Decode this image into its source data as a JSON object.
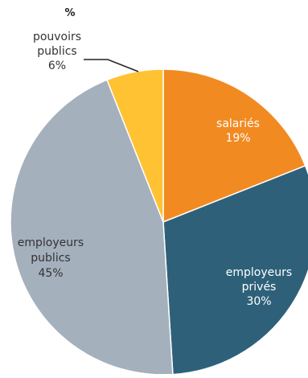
{
  "chart_data": {
    "type": "pie",
    "unit_label": "%",
    "slices": [
      {
        "label": "salariés",
        "value": 19,
        "value_label": "19%",
        "color": "#F28A22"
      },
      {
        "label": "employeurs privés",
        "value": 30,
        "value_label": "30%",
        "color": "#2E6179"
      },
      {
        "label": "employeurs publics",
        "value": 45,
        "value_label": "45%",
        "color": "#A5B0BD"
      },
      {
        "label": "pouvoirs publics",
        "value": 6,
        "value_label": "6%",
        "color": "#FFC233"
      }
    ],
    "label_lines": [
      [
        "salariés",
        "19%"
      ],
      [
        "employeurs",
        "privés",
        "30%"
      ],
      [
        "employeurs",
        "publics",
        "45%"
      ],
      [
        "pouvoirs",
        "publics",
        "6%"
      ]
    ],
    "start_slice_direction": "12 o'clock",
    "slice_order": "clockwise",
    "legend": "none"
  }
}
